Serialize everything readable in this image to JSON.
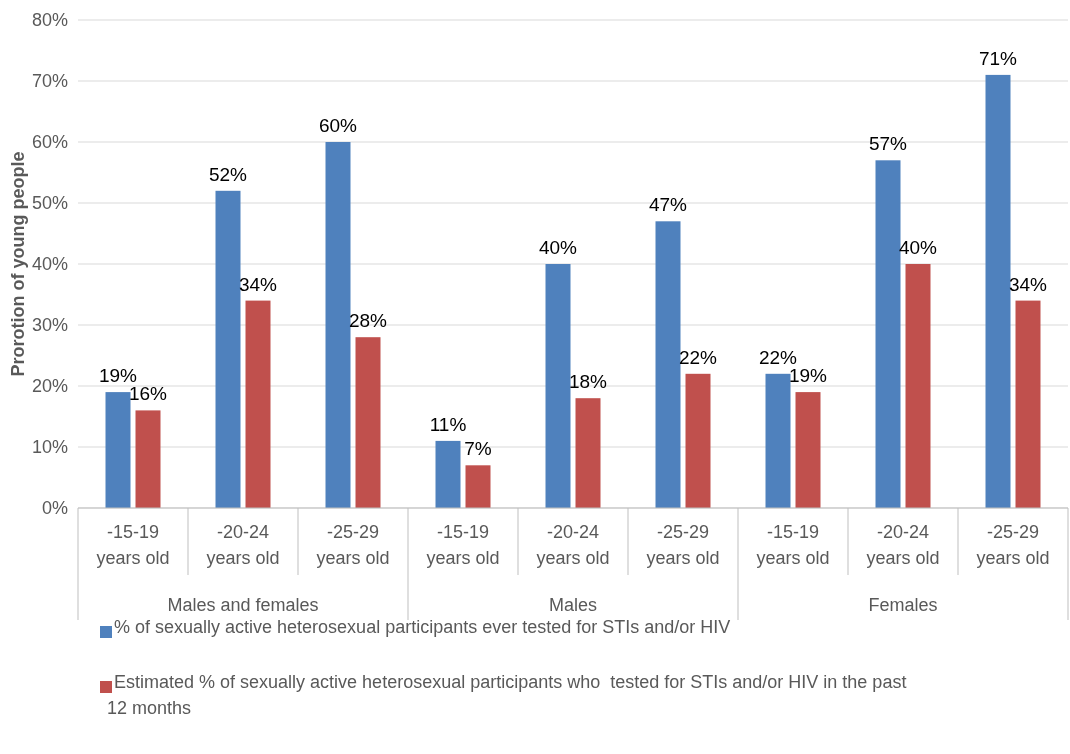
{
  "chart_data": {
    "type": "bar",
    "ylabel": "Prorotion of young people",
    "categories": [
      "-15-19 years old",
      "-20-24 years old",
      "-25-29 years old",
      "-15-19 years old",
      "-20-24 years old",
      "-25-29 years old",
      "-15-19 years old",
      "-20-24 years old",
      "-25-29 years old"
    ],
    "annotations": [
      "Males and females",
      "Males",
      "Females"
    ],
    "series": [
      {
        "name": "% of sexually active heterosexual participants ever tested for STIs and/or HIV",
        "color": "#4f81bd",
        "values": [
          19,
          52,
          60,
          11,
          40,
          47,
          22,
          57,
          71
        ],
        "value_labels": [
          "19%",
          "52%",
          "60%",
          "11%",
          "40%",
          "47%",
          "22%",
          "57%",
          "71%"
        ]
      },
      {
        "name": "Estimated % of sexually active heterosexual participants who  tested for STIs and/or HIV in the past 12 months",
        "color": "#c0504d",
        "values": [
          16,
          34,
          28,
          7,
          18,
          22,
          19,
          40,
          34
        ],
        "value_labels": [
          "16%",
          "34%",
          "28%",
          "7%",
          "18%",
          "22%",
          "19%",
          "40%",
          "34%"
        ]
      }
    ],
    "ylim": [
      0,
      80
    ],
    "yticks": [
      {
        "value": 0,
        "label": "0%"
      },
      {
        "value": 10,
        "label": "10%"
      },
      {
        "value": 20,
        "label": "20%"
      },
      {
        "value": 30,
        "label": "30%"
      },
      {
        "value": 40,
        "label": "40%"
      },
      {
        "value": 50,
        "label": "50%"
      },
      {
        "value": 60,
        "label": "60%"
      },
      {
        "value": 70,
        "label": "70%"
      },
      {
        "value": 80,
        "label": "80%"
      }
    ],
    "grid": "y",
    "legend": "bottom"
  }
}
